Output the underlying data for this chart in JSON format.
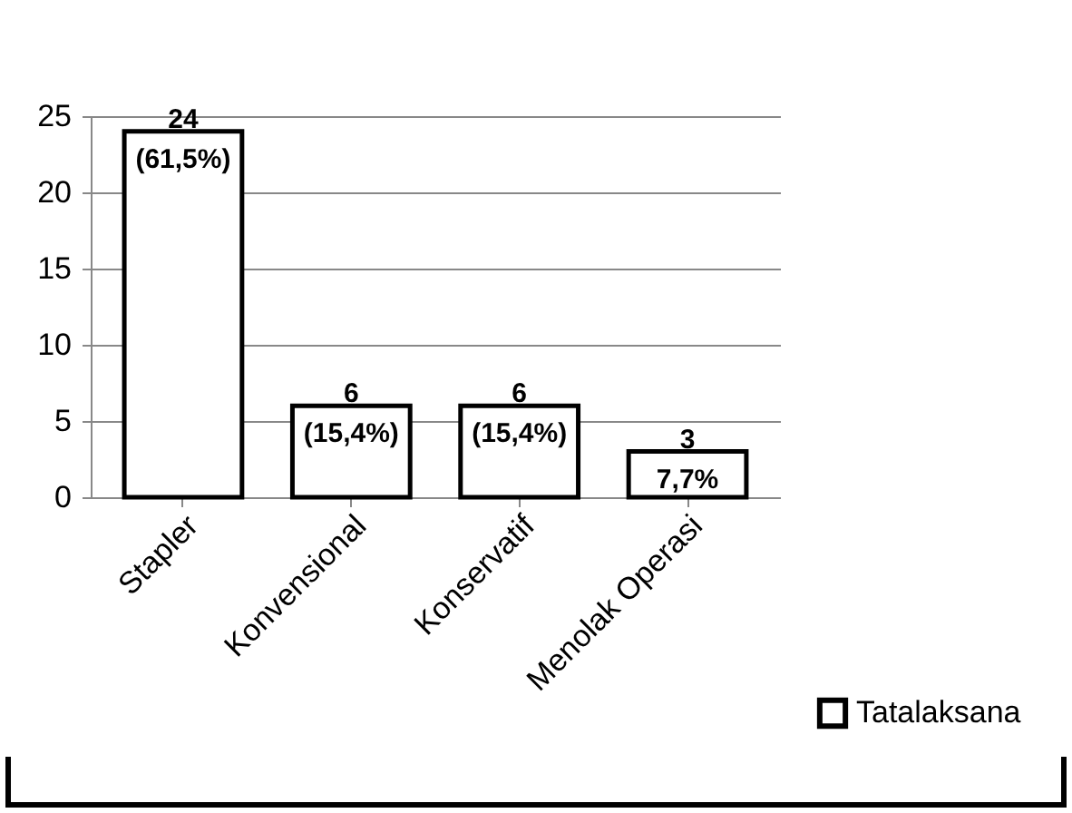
{
  "chart_data": {
    "type": "bar",
    "categories": [
      "Stapler",
      "Konvensional",
      "Konservatif",
      "Menolak Operasi"
    ],
    "series": [
      {
        "name": "Tatalaksana",
        "color": "#ffffff",
        "values": [
          24,
          6,
          6,
          3
        ]
      }
    ],
    "value_labels": [
      "24 (61,5%)",
      "6 (15,4%)",
      "6 (15,4%)",
      "3 7,7%"
    ],
    "ylim": [
      0,
      25
    ],
    "yticks": [
      0,
      5,
      10,
      15,
      20,
      25
    ],
    "grid": "y",
    "legend": "bottom right"
  }
}
